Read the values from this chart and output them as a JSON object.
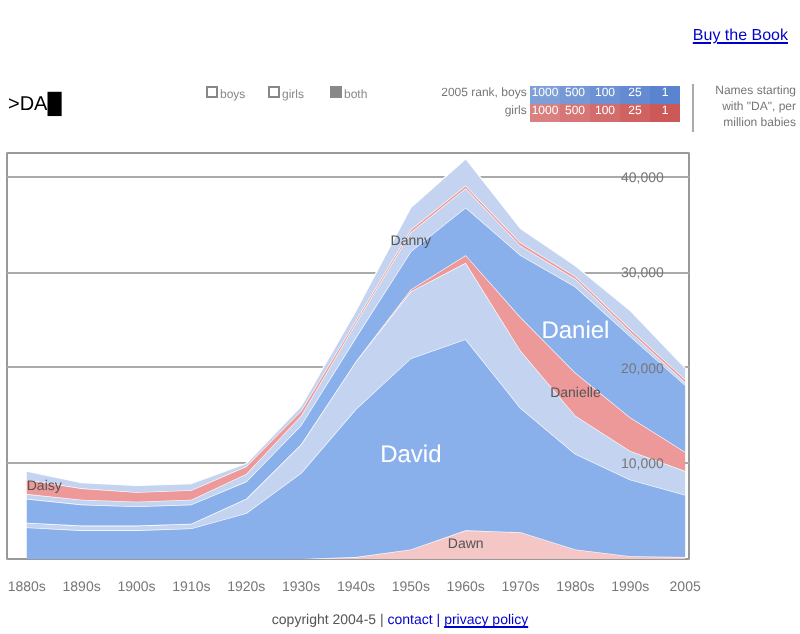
{
  "chart_data": {
    "type": "area",
    "stacked": true,
    "ylabel": "Names starting with \"DA\", per million babies",
    "categories": [
      "1880s",
      "1890s",
      "1900s",
      "1910s",
      "1920s",
      "1930s",
      "1940s",
      "1950s",
      "1960s",
      "1970s",
      "1980s",
      "1990s",
      "2005"
    ],
    "series": [
      {
        "name": "Dawn",
        "color": "#f4c6c6",
        "values": [
          0,
          0,
          0,
          0,
          0,
          0,
          200,
          1000,
          3000,
          2800,
          1000,
          300,
          200
        ]
      },
      {
        "name": "David",
        "color": "#8ab0ec",
        "values": [
          3300,
          3000,
          3000,
          3200,
          4800,
          9000,
          15500,
          20000,
          20000,
          13000,
          10000,
          8000,
          6500
        ]
      },
      {
        "color": "#c4d4f0",
        "values": [
          500,
          500,
          500,
          500,
          1500,
          3000,
          5000,
          7000,
          8000,
          6000,
          4000,
          3000,
          2500
        ]
      },
      {
        "name": "Danielle",
        "color": "#ee9999",
        "values": [
          0,
          0,
          0,
          0,
          0,
          0,
          0,
          200,
          800,
          3500,
          4500,
          3500,
          2000
        ]
      },
      {
        "name": "Daniel",
        "color": "#8ab0ec",
        "values": [
          2500,
          2200,
          2000,
          2000,
          1800,
          2000,
          2500,
          4000,
          5000,
          6500,
          9000,
          8500,
          7000
        ]
      },
      {
        "name": "Danny",
        "color": "#c4d4f0",
        "values": [
          500,
          500,
          500,
          500,
          800,
          1000,
          1500,
          2000,
          2000,
          1000,
          800,
          500,
          300
        ]
      },
      {
        "name": "Daisy",
        "color": "#ee9999",
        "values": [
          1500,
          1200,
          1000,
          1000,
          800,
          500,
          300,
          300,
          300,
          300,
          300,
          300,
          300
        ]
      },
      {
        "color": "#c4d4f0",
        "values": [
          900,
          600,
          700,
          700,
          300,
          500,
          1000,
          2300,
          2800,
          1500,
          1100,
          1900,
          1200
        ]
      }
    ],
    "ylim": [
      0,
      42500
    ],
    "yticks": [
      {
        "value": 10000,
        "label": "10,000"
      },
      {
        "value": 20000,
        "label": "20,000"
      },
      {
        "value": 30000,
        "label": "30,000"
      },
      {
        "value": 40000,
        "label": "40,000"
      }
    ],
    "grid": "y",
    "annotations": [
      ">DA█",
      "boys",
      "girls",
      "both",
      "2005 rank, boys",
      "girls",
      "1000",
      "500",
      "100",
      "25",
      "1",
      "copyright 2004-5 |",
      "contact |",
      "privacy policy",
      "Buy the Book"
    ]
  }
}
